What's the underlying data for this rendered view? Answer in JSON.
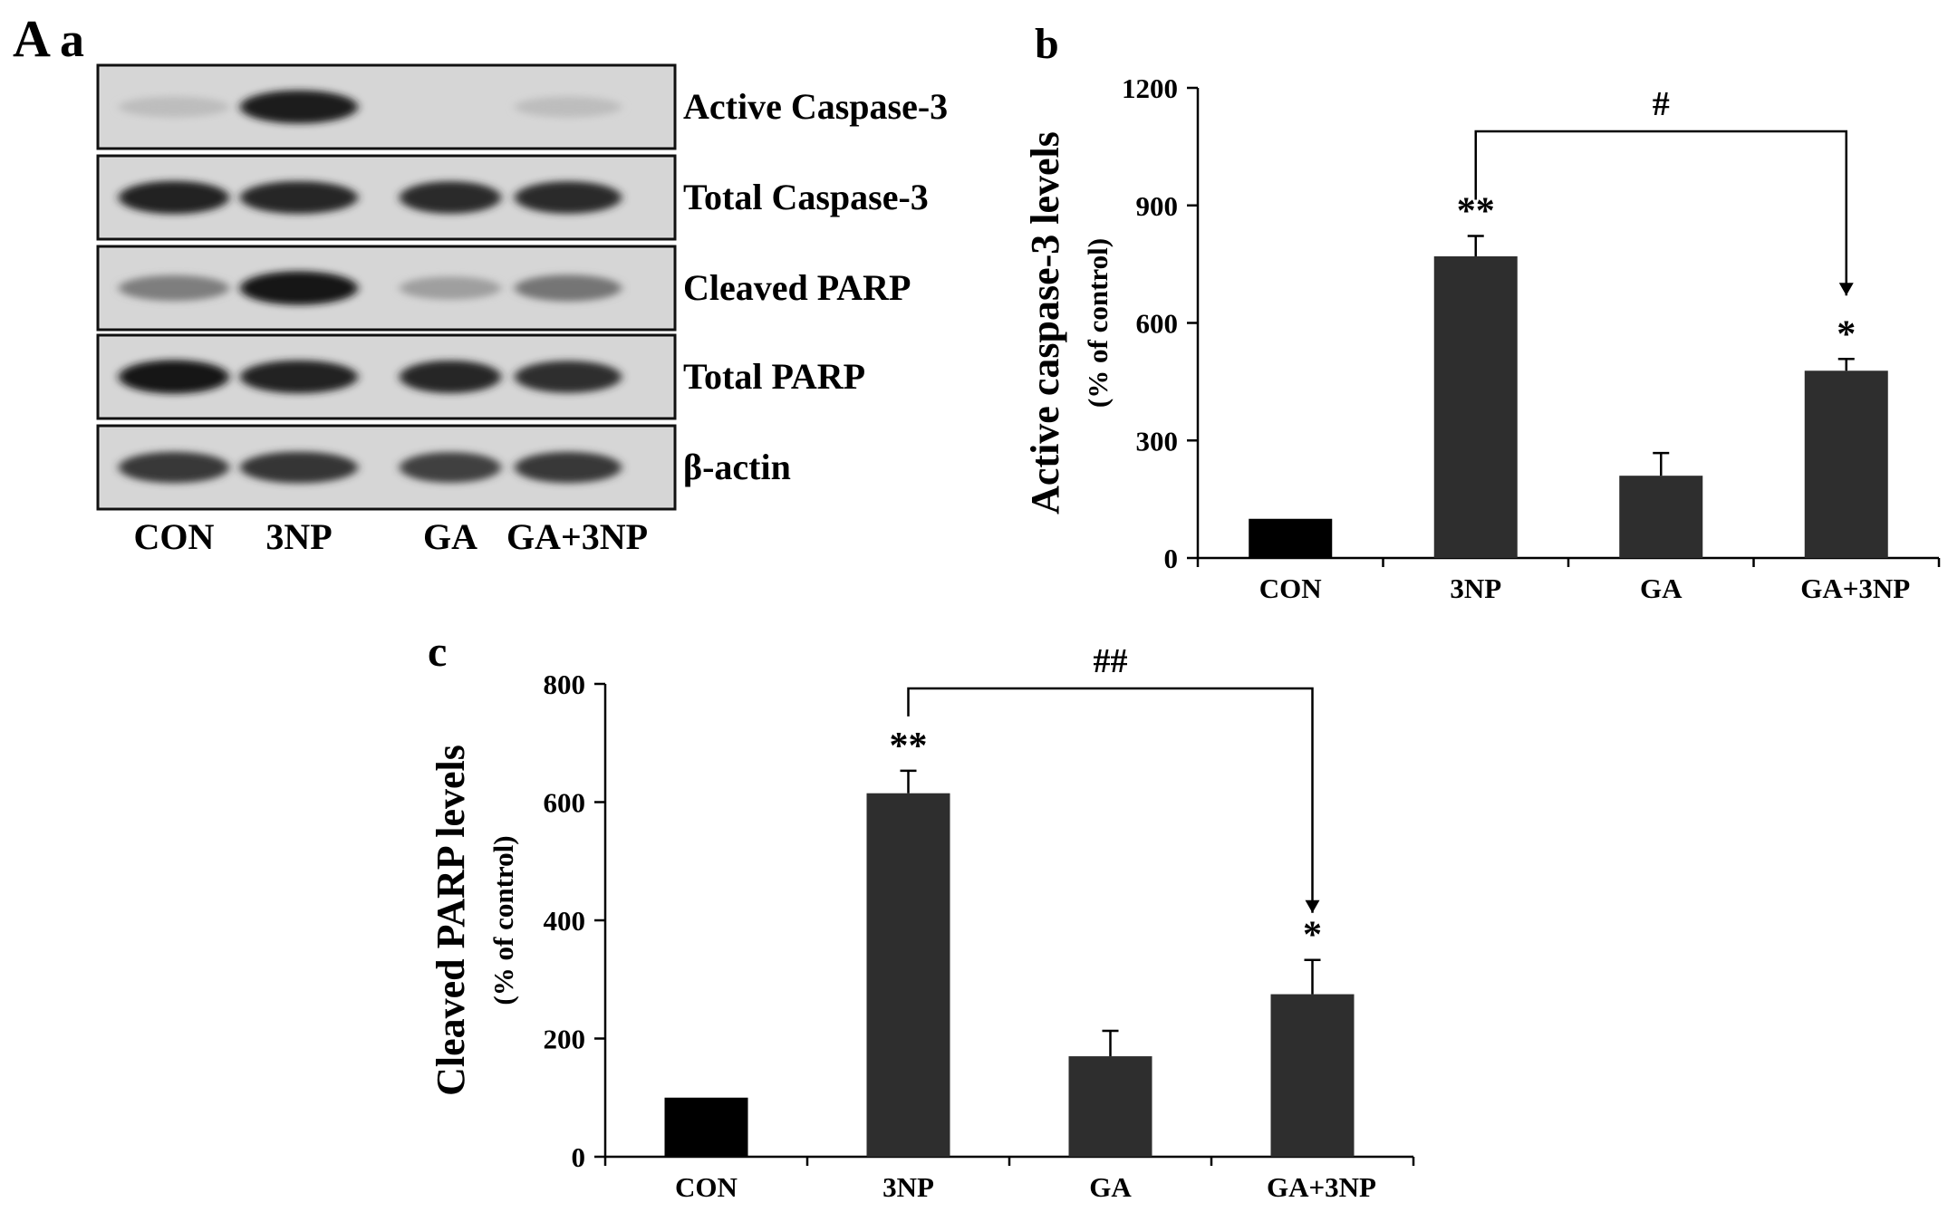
{
  "panel_labels": {
    "main": "A",
    "a": "a",
    "b": "b",
    "c": "c"
  },
  "blot": {
    "rows": [
      {
        "label": "Active Caspase-3",
        "intensities": [
          0.06,
          0.92,
          0.0,
          0.06
        ]
      },
      {
        "label": "Total Caspase-3",
        "intensities": [
          0.9,
          0.88,
          0.86,
          0.86
        ]
      },
      {
        "label": "Cleaved PARP",
        "intensities": [
          0.4,
          0.95,
          0.22,
          0.45
        ]
      },
      {
        "label": "Total PARP",
        "intensities": [
          0.95,
          0.9,
          0.88,
          0.84
        ]
      },
      {
        "label": "β-actin",
        "intensities": [
          0.78,
          0.8,
          0.74,
          0.78
        ]
      }
    ],
    "lanes": [
      "CON",
      "3NP",
      "GA",
      "GA+3NP"
    ]
  },
  "chart_data": [
    {
      "type": "bar",
      "panel": "b",
      "categories": [
        "CON",
        "3NP",
        "GA",
        "GA+3NP"
      ],
      "values": [
        100,
        770,
        210,
        478
      ],
      "errors": [
        0,
        52,
        58,
        30
      ],
      "ylabel": "Active caspase-3 levels",
      "ylabel_sub": "(% of control)",
      "ylim": [
        0,
        1200
      ],
      "yticks": [
        0,
        300,
        600,
        900,
        1200
      ],
      "annotations": [
        "",
        "**",
        "",
        "*"
      ],
      "comparison": {
        "from": 1,
        "to": 3,
        "label": "#"
      },
      "colors": [
        "#000000",
        "#2e2e2e",
        "#2e2e2e",
        "#2e2e2e"
      ]
    },
    {
      "type": "bar",
      "panel": "c",
      "categories": [
        "CON",
        "3NP",
        "GA",
        "GA+3NP"
      ],
      "values": [
        100,
        615,
        170,
        275
      ],
      "errors": [
        0,
        38,
        43,
        58
      ],
      "ylabel": "Cleaved PARP levels",
      "ylabel_sub": "(% of control)",
      "ylim": [
        0,
        800
      ],
      "yticks": [
        0,
        200,
        400,
        600,
        800
      ],
      "annotations": [
        "",
        "**",
        "",
        "*"
      ],
      "comparison": {
        "from": 1,
        "to": 3,
        "label": "##"
      },
      "colors": [
        "#000000",
        "#2e2e2e",
        "#2e2e2e",
        "#2e2e2e"
      ]
    }
  ]
}
